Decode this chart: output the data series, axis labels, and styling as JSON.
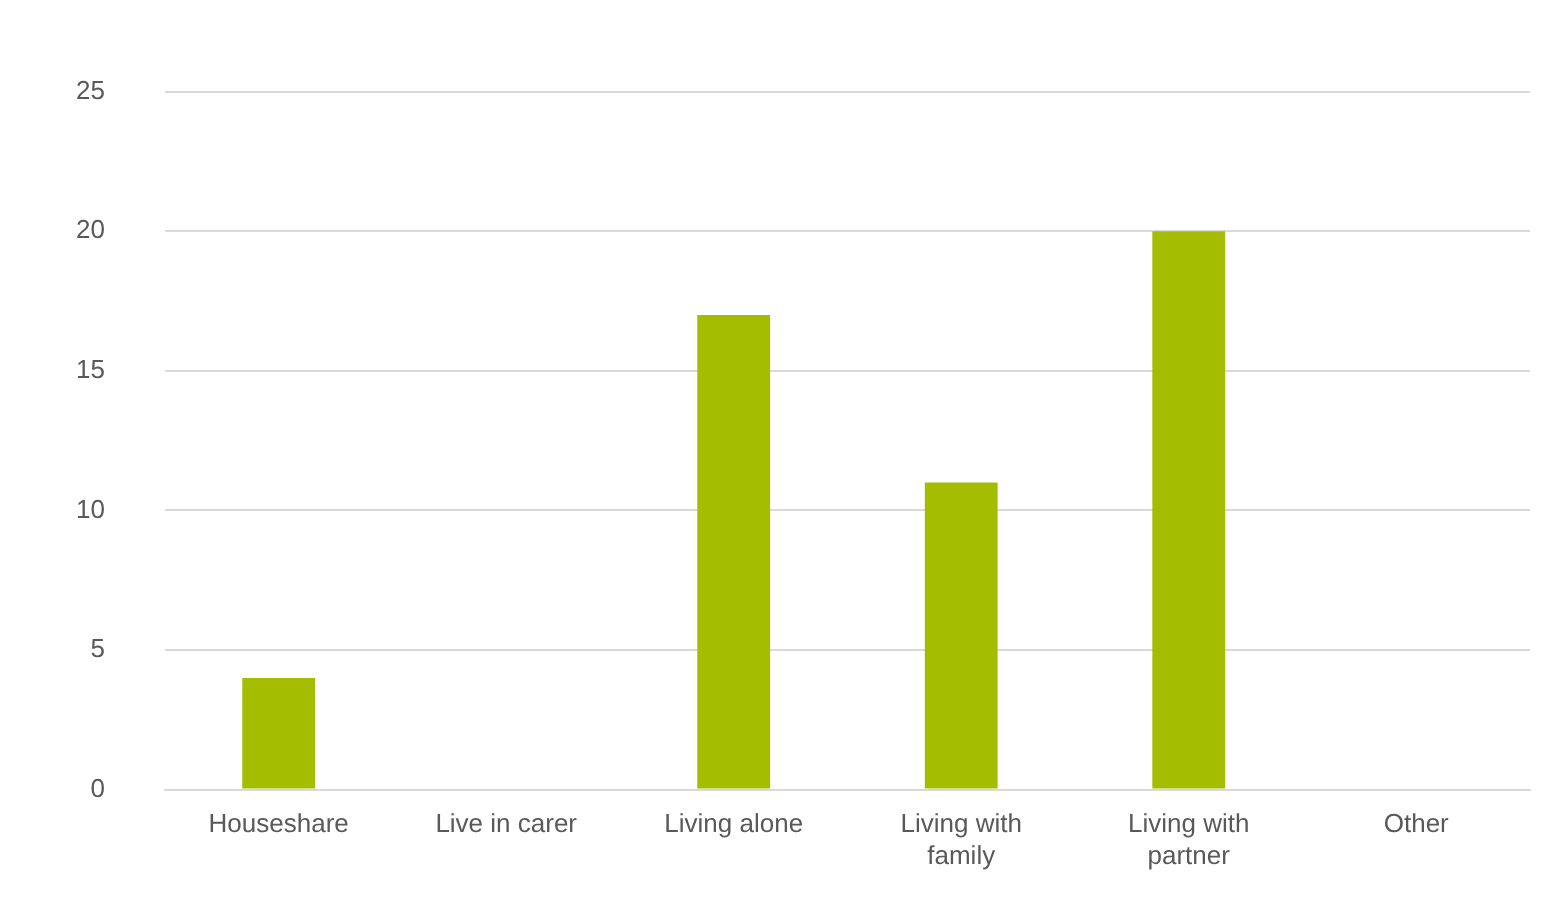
{
  "chart_data": {
    "type": "bar",
    "categories": [
      "Houseshare",
      "Live in carer",
      "Living alone",
      "Living with family",
      "Living with partner",
      "Other"
    ],
    "values": [
      4,
      0,
      17,
      11,
      20,
      0
    ],
    "color": "#a5bd00",
    "ylim": [
      0,
      25
    ],
    "yticks": [
      0,
      5,
      10,
      15,
      20,
      25
    ],
    "grid": "y",
    "legend": false
  }
}
